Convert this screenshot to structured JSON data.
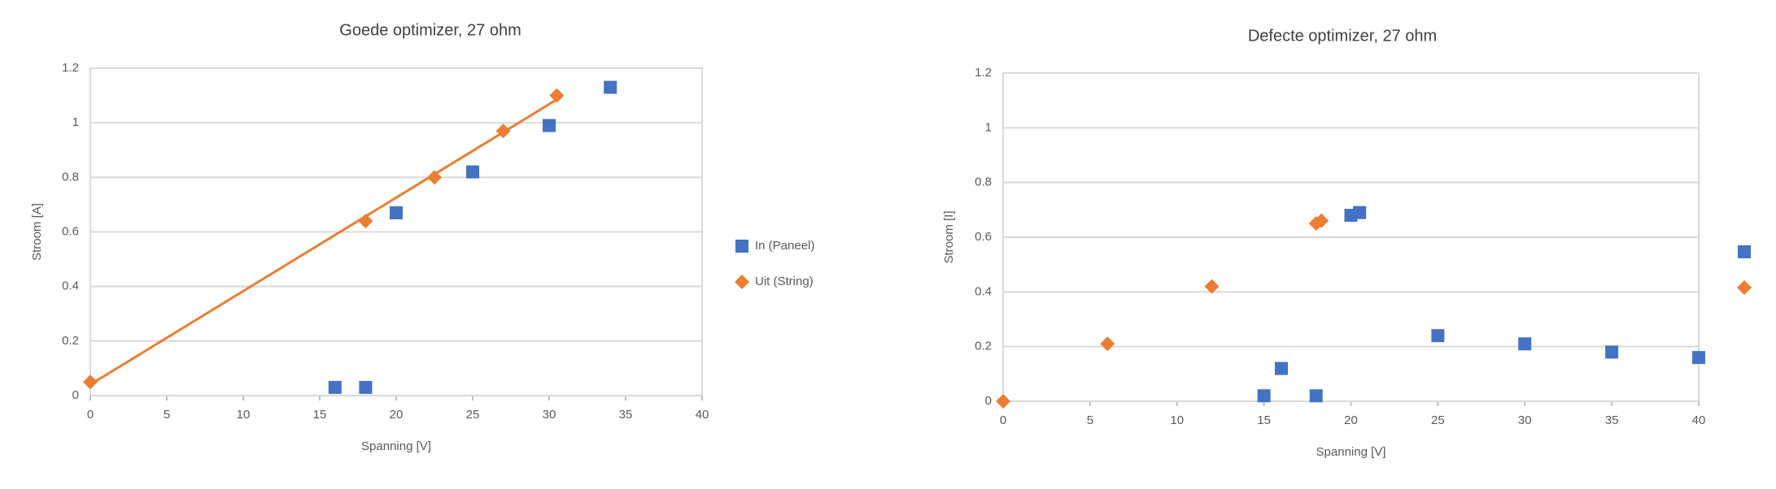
{
  "chart_data": [
    {
      "type": "scatter",
      "title": "Goede optimizer, 27 ohm",
      "x_label": "Spanning [V]",
      "y_label": "Stroom [A]",
      "xlim": [
        0,
        40
      ],
      "xticks": [
        0,
        5,
        10,
        15,
        20,
        25,
        30,
        35,
        40
      ],
      "ylim": [
        0,
        1.2
      ],
      "yticks": [
        0,
        0.2,
        0.4,
        0.6,
        0.8,
        1,
        1.2
      ],
      "grid": true,
      "legend": "right",
      "series": [
        {
          "name": "In (Paneel)",
          "color": "#4472c4",
          "marker": "square",
          "x": [
            16,
            18,
            20,
            25,
            30,
            34
          ],
          "values": [
            0.03,
            0.03,
            0.67,
            0.82,
            0.99,
            1.13
          ]
        },
        {
          "name": "Uit (String)",
          "color": "#ed7d31",
          "marker": "diamond",
          "trendline": "linear",
          "x": [
            0,
            18,
            22.5,
            27,
            30.5
          ],
          "values": [
            0.05,
            0.64,
            0.8,
            0.97,
            1.1
          ]
        }
      ]
    },
    {
      "type": "scatter",
      "title": "Defecte optimizer, 27 ohm",
      "x_label": "Spanning [V]",
      "y_label": "Stroom [I]",
      "xlim": [
        0,
        40
      ],
      "xticks": [
        0,
        5,
        10,
        15,
        20,
        25,
        30,
        35,
        40
      ],
      "ylim": [
        0,
        1.2
      ],
      "yticks": [
        0,
        0.2,
        0.4,
        0.6,
        0.8,
        1,
        1.2
      ],
      "grid": true,
      "legend": "right",
      "series": [
        {
          "color": "#4472c4",
          "marker": "square",
          "x": [
            15,
            16,
            18,
            20,
            20.5,
            25,
            30,
            35,
            40
          ],
          "values": [
            0.02,
            0.12,
            0.02,
            0.68,
            0.69,
            0.24,
            0.21,
            0.18,
            0.16
          ]
        },
        {
          "color": "#ed7d31",
          "marker": "diamond",
          "x": [
            0,
            6,
            12,
            18,
            18.3
          ],
          "values": [
            0,
            0.21,
            0.42,
            0.65,
            0.66
          ]
        }
      ]
    }
  ]
}
